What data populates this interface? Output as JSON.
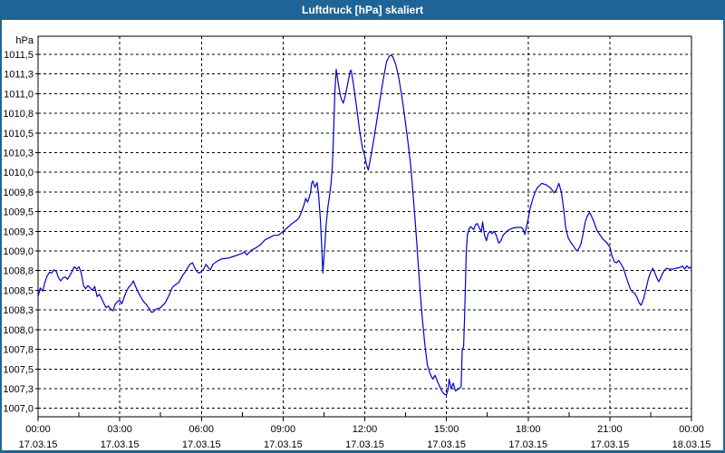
{
  "window": {
    "title": "Luftdruck [hPa] skaliert"
  },
  "colors": {
    "frame": "#1e6496",
    "title_text": "#ffffff",
    "plot_background": "#ffffff",
    "grid": "#000000",
    "axis": "#000000",
    "series_line": "#0000cd",
    "label_text": "#000000"
  },
  "chart_data": {
    "type": "line",
    "title": "Luftdruck [hPa] skaliert",
    "ylabel": "hPa",
    "xlabel": "",
    "grid": "dashed",
    "legend": "none",
    "y_axis": {
      "min": 1007.0,
      "max": 1011.5,
      "step": 0.25,
      "unit": "hPa",
      "tick_labels": [
        "1011,5",
        "1011,3",
        "1011,0",
        "1010,8",
        "1010,5",
        "1010,3",
        "1010,0",
        "1009,8",
        "1009,5",
        "1009,3",
        "1009,0",
        "1008,8",
        "1008,5",
        "1008,3",
        "1008,0",
        "1007,8",
        "1007,5",
        "1007,3",
        "1007,0"
      ]
    },
    "x_axis": {
      "range_hours": [
        0,
        24
      ],
      "major_step_hours": 3,
      "minor_step_hours": 1.5,
      "ticks": [
        {
          "time": "00:00",
          "date": "17.03.15"
        },
        {
          "time": "03:00",
          "date": "17.03.15"
        },
        {
          "time": "06:00",
          "date": "17.03.15"
        },
        {
          "time": "09:00",
          "date": "17.03.15"
        },
        {
          "time": "12:00",
          "date": "17.03.15"
        },
        {
          "time": "15:00",
          "date": "17.03.15"
        },
        {
          "time": "18:00",
          "date": "17.03.15"
        },
        {
          "time": "21:00",
          "date": "17.03.15"
        },
        {
          "time": "00:00",
          "date": "18.03.15"
        }
      ]
    },
    "series": [
      {
        "name": "Luftdruck",
        "color": "#0000cd",
        "points": [
          [
            0.0,
            1008.42
          ],
          [
            0.08,
            1008.53
          ],
          [
            0.17,
            1008.49
          ],
          [
            0.25,
            1008.6
          ],
          [
            0.33,
            1008.68
          ],
          [
            0.42,
            1008.73
          ],
          [
            0.5,
            1008.72
          ],
          [
            0.58,
            1008.76
          ],
          [
            0.67,
            1008.74
          ],
          [
            0.75,
            1008.66
          ],
          [
            0.83,
            1008.62
          ],
          [
            0.92,
            1008.66
          ],
          [
            1.0,
            1008.67
          ],
          [
            1.08,
            1008.64
          ],
          [
            1.17,
            1008.69
          ],
          [
            1.25,
            1008.74
          ],
          [
            1.33,
            1008.8
          ],
          [
            1.42,
            1008.77
          ],
          [
            1.5,
            1008.8
          ],
          [
            1.58,
            1008.73
          ],
          [
            1.67,
            1008.56
          ],
          [
            1.75,
            1008.52
          ],
          [
            1.83,
            1008.56
          ],
          [
            1.92,
            1008.53
          ],
          [
            2.0,
            1008.5
          ],
          [
            2.08,
            1008.55
          ],
          [
            2.17,
            1008.42
          ],
          [
            2.25,
            1008.45
          ],
          [
            2.33,
            1008.4
          ],
          [
            2.42,
            1008.33
          ],
          [
            2.5,
            1008.28
          ],
          [
            2.58,
            1008.3
          ],
          [
            2.67,
            1008.26
          ],
          [
            2.75,
            1008.24
          ],
          [
            2.83,
            1008.32
          ],
          [
            2.92,
            1008.36
          ],
          [
            3.0,
            1008.37
          ],
          [
            3.08,
            1008.33
          ],
          [
            3.17,
            1008.42
          ],
          [
            3.25,
            1008.49
          ],
          [
            3.33,
            1008.54
          ],
          [
            3.42,
            1008.57
          ],
          [
            3.5,
            1008.62
          ],
          [
            3.58,
            1008.55
          ],
          [
            3.67,
            1008.48
          ],
          [
            3.75,
            1008.43
          ],
          [
            3.83,
            1008.38
          ],
          [
            3.92,
            1008.34
          ],
          [
            4.0,
            1008.31
          ],
          [
            4.08,
            1008.27
          ],
          [
            4.17,
            1008.22
          ],
          [
            4.25,
            1008.23
          ],
          [
            4.33,
            1008.26
          ],
          [
            4.5,
            1008.28
          ],
          [
            4.67,
            1008.34
          ],
          [
            4.83,
            1008.45
          ],
          [
            4.92,
            1008.53
          ],
          [
            5.0,
            1008.56
          ],
          [
            5.17,
            1008.6
          ],
          [
            5.25,
            1008.65
          ],
          [
            5.33,
            1008.7
          ],
          [
            5.42,
            1008.74
          ],
          [
            5.5,
            1008.79
          ],
          [
            5.58,
            1008.83
          ],
          [
            5.67,
            1008.85
          ],
          [
            5.75,
            1008.79
          ],
          [
            5.83,
            1008.74
          ],
          [
            5.92,
            1008.72
          ],
          [
            6.0,
            1008.74
          ],
          [
            6.08,
            1008.77
          ],
          [
            6.17,
            1008.83
          ],
          [
            6.25,
            1008.79
          ],
          [
            6.33,
            1008.76
          ],
          [
            6.42,
            1008.83
          ],
          [
            6.58,
            1008.87
          ],
          [
            6.75,
            1008.9
          ],
          [
            7.0,
            1008.91
          ],
          [
            7.17,
            1008.93
          ],
          [
            7.33,
            1008.95
          ],
          [
            7.5,
            1008.97
          ],
          [
            7.58,
            1008.99
          ],
          [
            7.67,
            1008.95
          ],
          [
            7.83,
            1009.01
          ],
          [
            8.0,
            1009.04
          ],
          [
            8.17,
            1009.08
          ],
          [
            8.33,
            1009.14
          ],
          [
            8.5,
            1009.17
          ],
          [
            8.67,
            1009.2
          ],
          [
            8.83,
            1009.2
          ],
          [
            9.0,
            1009.25
          ],
          [
            9.17,
            1009.3
          ],
          [
            9.33,
            1009.35
          ],
          [
            9.5,
            1009.39
          ],
          [
            9.6,
            1009.43
          ],
          [
            9.7,
            1009.52
          ],
          [
            9.78,
            1009.6
          ],
          [
            9.83,
            1009.67
          ],
          [
            9.9,
            1009.62
          ],
          [
            10.0,
            1009.73
          ],
          [
            10.05,
            1009.86
          ],
          [
            10.09,
            1009.89
          ],
          [
            10.17,
            1009.81
          ],
          [
            10.25,
            1009.87
          ],
          [
            10.3,
            1009.73
          ],
          [
            10.37,
            1009.4
          ],
          [
            10.42,
            1009.05
          ],
          [
            10.46,
            1008.72
          ],
          [
            10.54,
            1009.1
          ],
          [
            10.58,
            1009.33
          ],
          [
            10.65,
            1009.57
          ],
          [
            10.7,
            1009.69
          ],
          [
            10.76,
            1009.85
          ],
          [
            10.81,
            1010.08
          ],
          [
            10.86,
            1010.55
          ],
          [
            10.9,
            1011.0
          ],
          [
            10.95,
            1011.31
          ],
          [
            11.04,
            1011.1
          ],
          [
            11.12,
            1010.95
          ],
          [
            11.21,
            1010.88
          ],
          [
            11.29,
            1010.98
          ],
          [
            11.37,
            1011.12
          ],
          [
            11.46,
            1011.28
          ],
          [
            11.5,
            1011.3
          ],
          [
            11.58,
            1011.13
          ],
          [
            11.7,
            1010.83
          ],
          [
            11.81,
            1010.53
          ],
          [
            11.92,
            1010.3
          ],
          [
            12.0,
            1010.21
          ],
          [
            12.06,
            1010.1
          ],
          [
            12.13,
            1010.03
          ],
          [
            12.25,
            1010.25
          ],
          [
            12.36,
            1010.48
          ],
          [
            12.47,
            1010.72
          ],
          [
            12.58,
            1010.97
          ],
          [
            12.69,
            1011.2
          ],
          [
            12.8,
            1011.41
          ],
          [
            12.91,
            1011.48
          ],
          [
            12.97,
            1011.49
          ],
          [
            13.03,
            1011.47
          ],
          [
            13.14,
            1011.37
          ],
          [
            13.25,
            1011.2
          ],
          [
            13.36,
            1010.97
          ],
          [
            13.47,
            1010.7
          ],
          [
            13.58,
            1010.4
          ],
          [
            13.69,
            1010.08
          ],
          [
            13.78,
            1009.7
          ],
          [
            13.87,
            1009.3
          ],
          [
            13.95,
            1008.9
          ],
          [
            14.03,
            1008.5
          ],
          [
            14.12,
            1008.12
          ],
          [
            14.21,
            1007.8
          ],
          [
            14.3,
            1007.55
          ],
          [
            14.4,
            1007.44
          ],
          [
            14.5,
            1007.37
          ],
          [
            14.58,
            1007.42
          ],
          [
            14.67,
            1007.34
          ],
          [
            14.75,
            1007.28
          ],
          [
            14.83,
            1007.22
          ],
          [
            14.92,
            1007.18
          ],
          [
            15.0,
            1007.17
          ],
          [
            15.06,
            1007.24
          ],
          [
            15.1,
            1007.37
          ],
          [
            15.17,
            1007.25
          ],
          [
            15.25,
            1007.32
          ],
          [
            15.33,
            1007.22
          ],
          [
            15.42,
            1007.24
          ],
          [
            15.5,
            1007.26
          ],
          [
            15.54,
            1007.28
          ],
          [
            15.58,
            1007.75
          ],
          [
            15.63,
            1007.78
          ],
          [
            15.67,
            1008.2
          ],
          [
            15.7,
            1008.6
          ],
          [
            15.73,
            1009.0
          ],
          [
            15.77,
            1009.21
          ],
          [
            15.83,
            1009.28
          ],
          [
            15.88,
            1009.31
          ],
          [
            15.95,
            1009.29
          ],
          [
            16.0,
            1009.27
          ],
          [
            16.06,
            1009.33
          ],
          [
            16.13,
            1009.35
          ],
          [
            16.2,
            1009.3
          ],
          [
            16.28,
            1009.24
          ],
          [
            16.33,
            1009.37
          ],
          [
            16.4,
            1009.2
          ],
          [
            16.47,
            1009.13
          ],
          [
            16.53,
            1009.22
          ],
          [
            16.6,
            1009.25
          ],
          [
            16.67,
            1009.22
          ],
          [
            16.75,
            1009.25
          ],
          [
            16.83,
            1009.2
          ],
          [
            16.92,
            1009.1
          ],
          [
            17.0,
            1009.13
          ],
          [
            17.08,
            1009.2
          ],
          [
            17.25,
            1009.26
          ],
          [
            17.42,
            1009.29
          ],
          [
            17.58,
            1009.3
          ],
          [
            17.75,
            1009.3
          ],
          [
            17.83,
            1009.27
          ],
          [
            17.88,
            1009.21
          ],
          [
            18.0,
            1009.4
          ],
          [
            18.08,
            1009.55
          ],
          [
            18.17,
            1009.66
          ],
          [
            18.25,
            1009.74
          ],
          [
            18.33,
            1009.8
          ],
          [
            18.5,
            1009.86
          ],
          [
            18.67,
            1009.84
          ],
          [
            18.83,
            1009.8
          ],
          [
            18.95,
            1009.74
          ],
          [
            19.03,
            1009.77
          ],
          [
            19.13,
            1009.86
          ],
          [
            19.22,
            1009.75
          ],
          [
            19.3,
            1009.55
          ],
          [
            19.38,
            1009.3
          ],
          [
            19.47,
            1009.17
          ],
          [
            19.55,
            1009.12
          ],
          [
            19.63,
            1009.08
          ],
          [
            19.75,
            1009.02
          ],
          [
            19.8,
            1009.0
          ],
          [
            19.88,
            1009.04
          ],
          [
            19.95,
            1009.1
          ],
          [
            20.03,
            1009.24
          ],
          [
            20.1,
            1009.37
          ],
          [
            20.17,
            1009.44
          ],
          [
            20.25,
            1009.49
          ],
          [
            20.33,
            1009.44
          ],
          [
            20.42,
            1009.37
          ],
          [
            20.53,
            1009.26
          ],
          [
            20.63,
            1009.21
          ],
          [
            20.75,
            1009.15
          ],
          [
            20.88,
            1009.11
          ],
          [
            21.0,
            1009.05
          ],
          [
            21.08,
            1008.94
          ],
          [
            21.17,
            1008.86
          ],
          [
            21.25,
            1008.85
          ],
          [
            21.33,
            1008.88
          ],
          [
            21.42,
            1008.83
          ],
          [
            21.5,
            1008.78
          ],
          [
            21.63,
            1008.64
          ],
          [
            21.75,
            1008.52
          ],
          [
            21.83,
            1008.48
          ],
          [
            21.92,
            1008.46
          ],
          [
            22.0,
            1008.41
          ],
          [
            22.08,
            1008.34
          ],
          [
            22.15,
            1008.31
          ],
          [
            22.25,
            1008.4
          ],
          [
            22.33,
            1008.52
          ],
          [
            22.42,
            1008.65
          ],
          [
            22.5,
            1008.73
          ],
          [
            22.58,
            1008.78
          ],
          [
            22.67,
            1008.71
          ],
          [
            22.75,
            1008.64
          ],
          [
            22.8,
            1008.61
          ],
          [
            22.92,
            1008.7
          ],
          [
            23.0,
            1008.75
          ],
          [
            23.08,
            1008.78
          ],
          [
            23.17,
            1008.77
          ],
          [
            23.25,
            1008.77
          ],
          [
            23.33,
            1008.77
          ],
          [
            23.42,
            1008.78
          ],
          [
            23.58,
            1008.79
          ],
          [
            23.67,
            1008.81
          ],
          [
            23.75,
            1008.77
          ],
          [
            23.83,
            1008.81
          ],
          [
            23.92,
            1008.78
          ],
          [
            24.0,
            1008.8
          ]
        ]
      }
    ]
  }
}
